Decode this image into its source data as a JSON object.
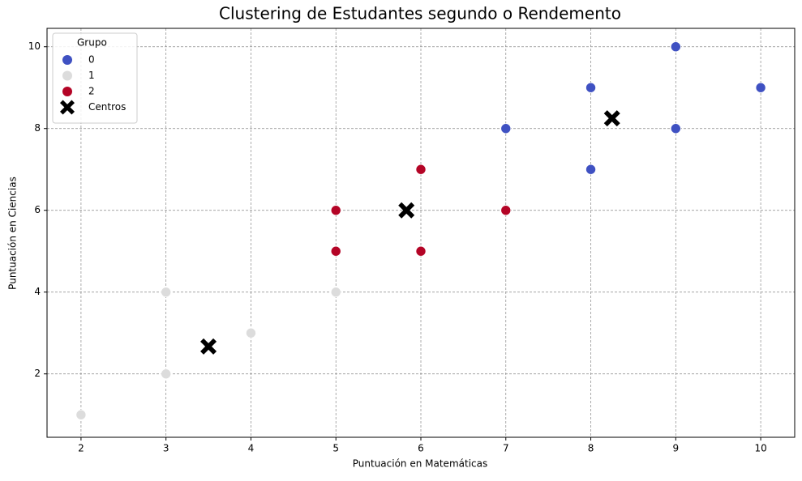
{
  "chart_data": {
    "type": "scatter",
    "title": "Clustering de Estudantes segundo o Rendemento",
    "x_label": "Puntuación en Matemáticas",
    "y_label": "Puntuación en Ciencias",
    "legend_title": "Grupo",
    "legend": "upper left",
    "grid": true,
    "xlim": [
      1.6,
      10.4
    ],
    "ylim": [
      0.45,
      10.45
    ],
    "xticks": [
      2,
      3,
      4,
      5,
      6,
      7,
      8,
      9,
      10
    ],
    "yticks": [
      2,
      4,
      6,
      8,
      10
    ],
    "series": [
      {
        "name": "0",
        "color": "#3f51c2",
        "marker": "circle",
        "x": [
          9,
          8,
          10,
          7,
          9,
          8
        ],
        "values": [
          10,
          9,
          9,
          8,
          8,
          7
        ]
      },
      {
        "name": "1",
        "color": "#dcdcdc",
        "marker": "circle",
        "x": [
          2,
          3,
          3,
          4,
          5
        ],
        "values": [
          1,
          2,
          4,
          3,
          4
        ]
      },
      {
        "name": "2",
        "color": "#b40426",
        "marker": "circle",
        "x": [
          5,
          5,
          6,
          6,
          7
        ],
        "values": [
          6,
          5,
          7,
          5,
          6
        ]
      },
      {
        "name": "Centros",
        "color": "#000000",
        "marker": "x",
        "x": [
          8.25,
          5.83,
          3.5
        ],
        "values": [
          8.25,
          6.0,
          2.67
        ]
      }
    ]
  }
}
